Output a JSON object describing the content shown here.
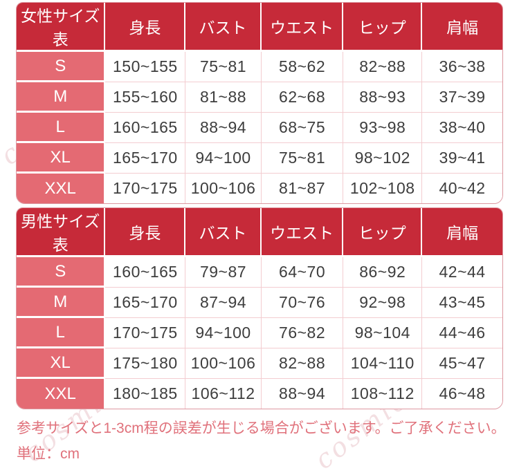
{
  "page": {
    "disclaimer": "参考サイズと1-3cm程の誤差が生じる場合がございます。ご了承ください。",
    "unit_note": "単位：cm",
    "watermark": "cosmi00"
  },
  "colors": {
    "header_red": "#c62a39",
    "size_cell_pink": "#e46a73",
    "divider_pink": "#f3ccd0",
    "outer_border_pink": "#dd97a0",
    "footer_text_pink": "#e0717b",
    "value_text": "#3d3d3d"
  },
  "chart_data": [
    {
      "type": "table",
      "title": "女性サイズ表",
      "columns": [
        "身長",
        "バスト",
        "ウエスト",
        "ヒップ",
        "肩幅"
      ],
      "rows": [
        {
          "size": "S",
          "values": [
            "150~155",
            "75~81",
            "58~62",
            "82~88",
            "36~38"
          ]
        },
        {
          "size": "M",
          "values": [
            "155~160",
            "81~88",
            "62~68",
            "88~93",
            "37~39"
          ]
        },
        {
          "size": "L",
          "values": [
            "160~165",
            "88~94",
            "68~75",
            "93~98",
            "38~40"
          ]
        },
        {
          "size": "XL",
          "values": [
            "165~170",
            "94~100",
            "75~81",
            "98~102",
            "39~41"
          ]
        },
        {
          "size": "XXL",
          "values": [
            "170~175",
            "100~106",
            "81~87",
            "102~108",
            "40~42"
          ]
        }
      ]
    },
    {
      "type": "table",
      "title": "男性サイズ表",
      "columns": [
        "身長",
        "バスト",
        "ウエスト",
        "ヒップ",
        "肩幅"
      ],
      "rows": [
        {
          "size": "S",
          "values": [
            "160~165",
            "79~87",
            "64~70",
            "86~92",
            "42~44"
          ]
        },
        {
          "size": "M",
          "values": [
            "165~170",
            "87~94",
            "70~76",
            "92~98",
            "43~45"
          ]
        },
        {
          "size": "L",
          "values": [
            "170~175",
            "94~100",
            "76~82",
            "98~104",
            "44~46"
          ]
        },
        {
          "size": "XL",
          "values": [
            "175~180",
            "100~106",
            "82~88",
            "104~110",
            "45~47"
          ]
        },
        {
          "size": "XXL",
          "values": [
            "180~185",
            "106~112",
            "88~94",
            "108~112",
            "46~48"
          ]
        }
      ]
    }
  ]
}
